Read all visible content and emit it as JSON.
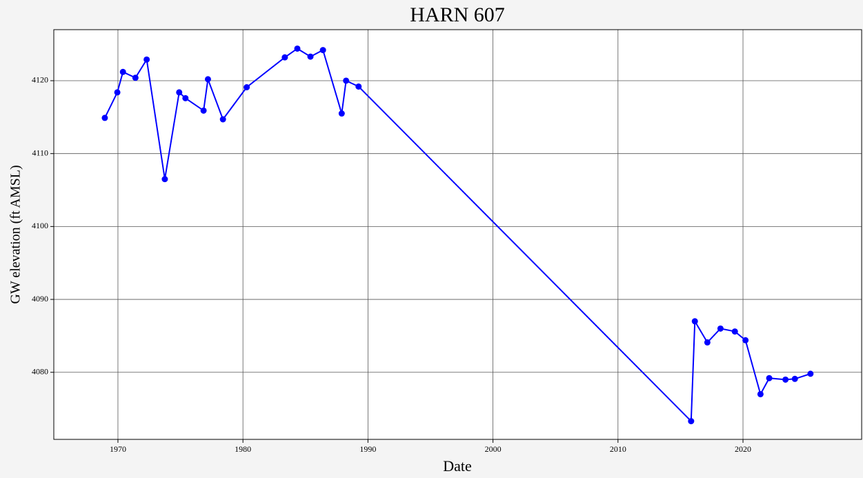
{
  "chart_data": {
    "type": "line",
    "title": "HARN 607",
    "xlabel": "Date",
    "ylabel": "GW elevation (ft AMSL)",
    "series": [
      {
        "name": "HARN 607",
        "color": "#0000ff",
        "x": [
          1968.95,
          1969.95,
          1970.4,
          1971.4,
          1972.3,
          1973.75,
          1974.9,
          1975.4,
          1976.85,
          1977.2,
          1978.4,
          1980.3,
          1983.35,
          1984.35,
          1985.4,
          1986.4,
          1987.9,
          1988.25,
          1989.25,
          2015.85,
          2016.15,
          2017.15,
          2018.2,
          2019.35,
          2020.2,
          2021.4,
          2022.1,
          2023.4,
          2024.15,
          2025.4
        ],
        "values": [
          4114.9,
          4118.4,
          4121.2,
          4120.4,
          4122.9,
          4106.5,
          4118.4,
          4117.6,
          4115.9,
          4120.2,
          4114.7,
          4119.1,
          4123.2,
          4124.4,
          4123.3,
          4124.2,
          4115.5,
          4120.0,
          4119.2,
          4073.3,
          4087.0,
          4084.1,
          4086.0,
          4085.6,
          4084.4,
          4077.0,
          4079.2,
          4079.0,
          4079.1,
          4079.8
        ]
      }
    ],
    "xlim": [
      1964.87,
      2029.49
    ],
    "xticks": [
      1970,
      1980,
      1990,
      2000,
      2010,
      2020
    ],
    "ylim": [
      4070.8,
      4127.0
    ],
    "yticks": [
      4080,
      4090,
      4100,
      4110,
      4120
    ],
    "grid": true
  }
}
